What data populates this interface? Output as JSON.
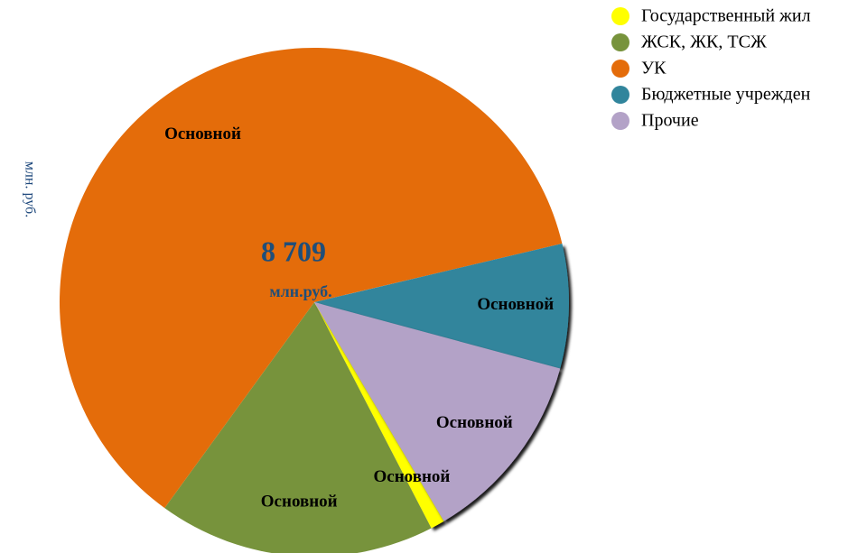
{
  "chart_data": {
    "type": "pie",
    "y_axis_label": "млн. руб.",
    "total_label": "8 709",
    "total_unit": "млн.руб.",
    "categories": [
      "Государственный жил",
      "ЖСК, ЖК, ТСЖ",
      "УК",
      "Бюджетные учрежден",
      "Прочие"
    ],
    "values": [
      0.9,
      17.6,
      61.3,
      7.9,
      12.3
    ],
    "value_labels": [
      "Основной",
      "Основной",
      "Основной",
      "Основной",
      "Основной"
    ],
    "colors": [
      "#ffff00",
      "#77933c",
      "#e46c0a",
      "#31859c",
      "#b3a2c7"
    ],
    "legend": "top-right"
  }
}
